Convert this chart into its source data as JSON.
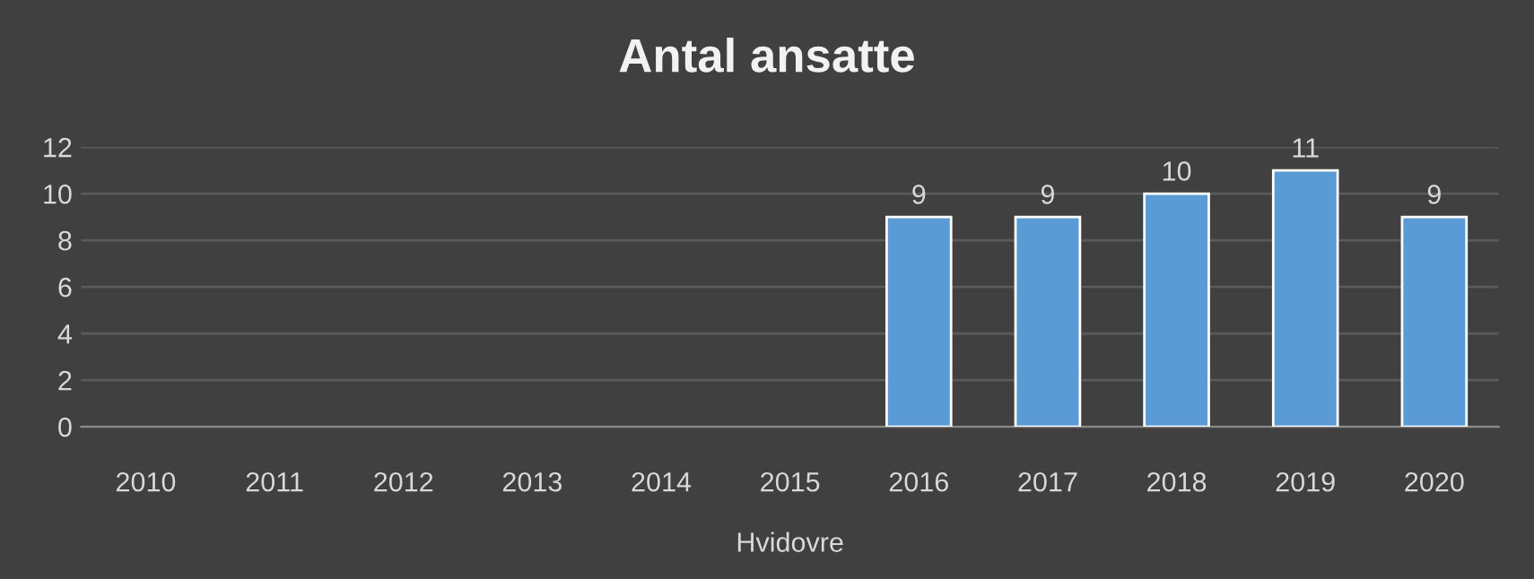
{
  "chart_data": {
    "type": "bar",
    "title": "Antal ansatte",
    "xlabel": "Hvidovre",
    "categories": [
      "2010",
      "2011",
      "2012",
      "2013",
      "2014",
      "2015",
      "2016",
      "2017",
      "2018",
      "2019",
      "2020"
    ],
    "values": [
      null,
      null,
      null,
      null,
      null,
      null,
      9,
      9,
      10,
      11,
      9
    ],
    "color": "#5b9bd5",
    "ylim": [
      0,
      12
    ],
    "yticks": [
      0,
      2,
      4,
      6,
      8,
      10,
      12
    ],
    "grid": "y",
    "data_labels": true
  }
}
